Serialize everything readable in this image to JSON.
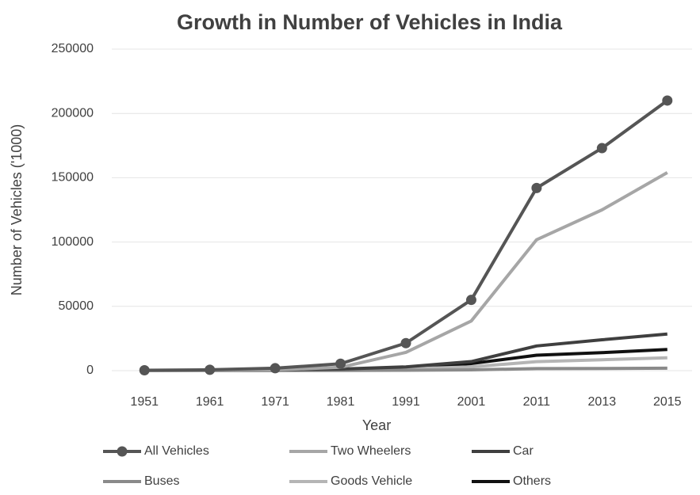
{
  "chart_data": {
    "type": "line",
    "title": "Growth in Number of Vehicles in India",
    "x_label": "Year",
    "y_label": "Number of Vehicles ('1000)",
    "categories": [
      "1951",
      "1961",
      "1971",
      "1981",
      "1991",
      "2001",
      "2011",
      "2013",
      "2015"
    ],
    "series": [
      {
        "name": "All Vehicles",
        "color": "#555555",
        "marker": true,
        "values": [
          300,
          700,
          1900,
          5400,
          21400,
          55000,
          142000,
          173000,
          210000
        ]
      },
      {
        "name": "Two Wheelers",
        "color": "#a6a6a6",
        "marker": false,
        "values": [
          30,
          90,
          600,
          2600,
          14200,
          38600,
          101800,
          125000,
          154000
        ]
      },
      {
        "name": "Car",
        "color": "#3f3f3f",
        "marker": false,
        "values": [
          160,
          310,
          680,
          1200,
          2950,
          7060,
          19200,
          24000,
          28500
        ]
      },
      {
        "name": "Buses",
        "color": "#8a8a8a",
        "marker": false,
        "values": [
          34,
          57,
          94,
          162,
          331,
          634,
          1600,
          1700,
          1900
        ]
      },
      {
        "name": "Goods Vehicle",
        "color": "#b5b5b5",
        "marker": false,
        "values": [
          82,
          168,
          343,
          554,
          1356,
          2948,
          7000,
          8500,
          10000
        ]
      },
      {
        "name": "Others",
        "color": "#111111",
        "marker": false,
        "values": [
          40,
          80,
          200,
          1000,
          2500,
          5500,
          12000,
          14000,
          16500
        ]
      }
    ],
    "ylim": [
      0,
      250000
    ],
    "yticks": [
      0,
      50000,
      100000,
      150000,
      200000,
      250000
    ],
    "grid": true
  }
}
